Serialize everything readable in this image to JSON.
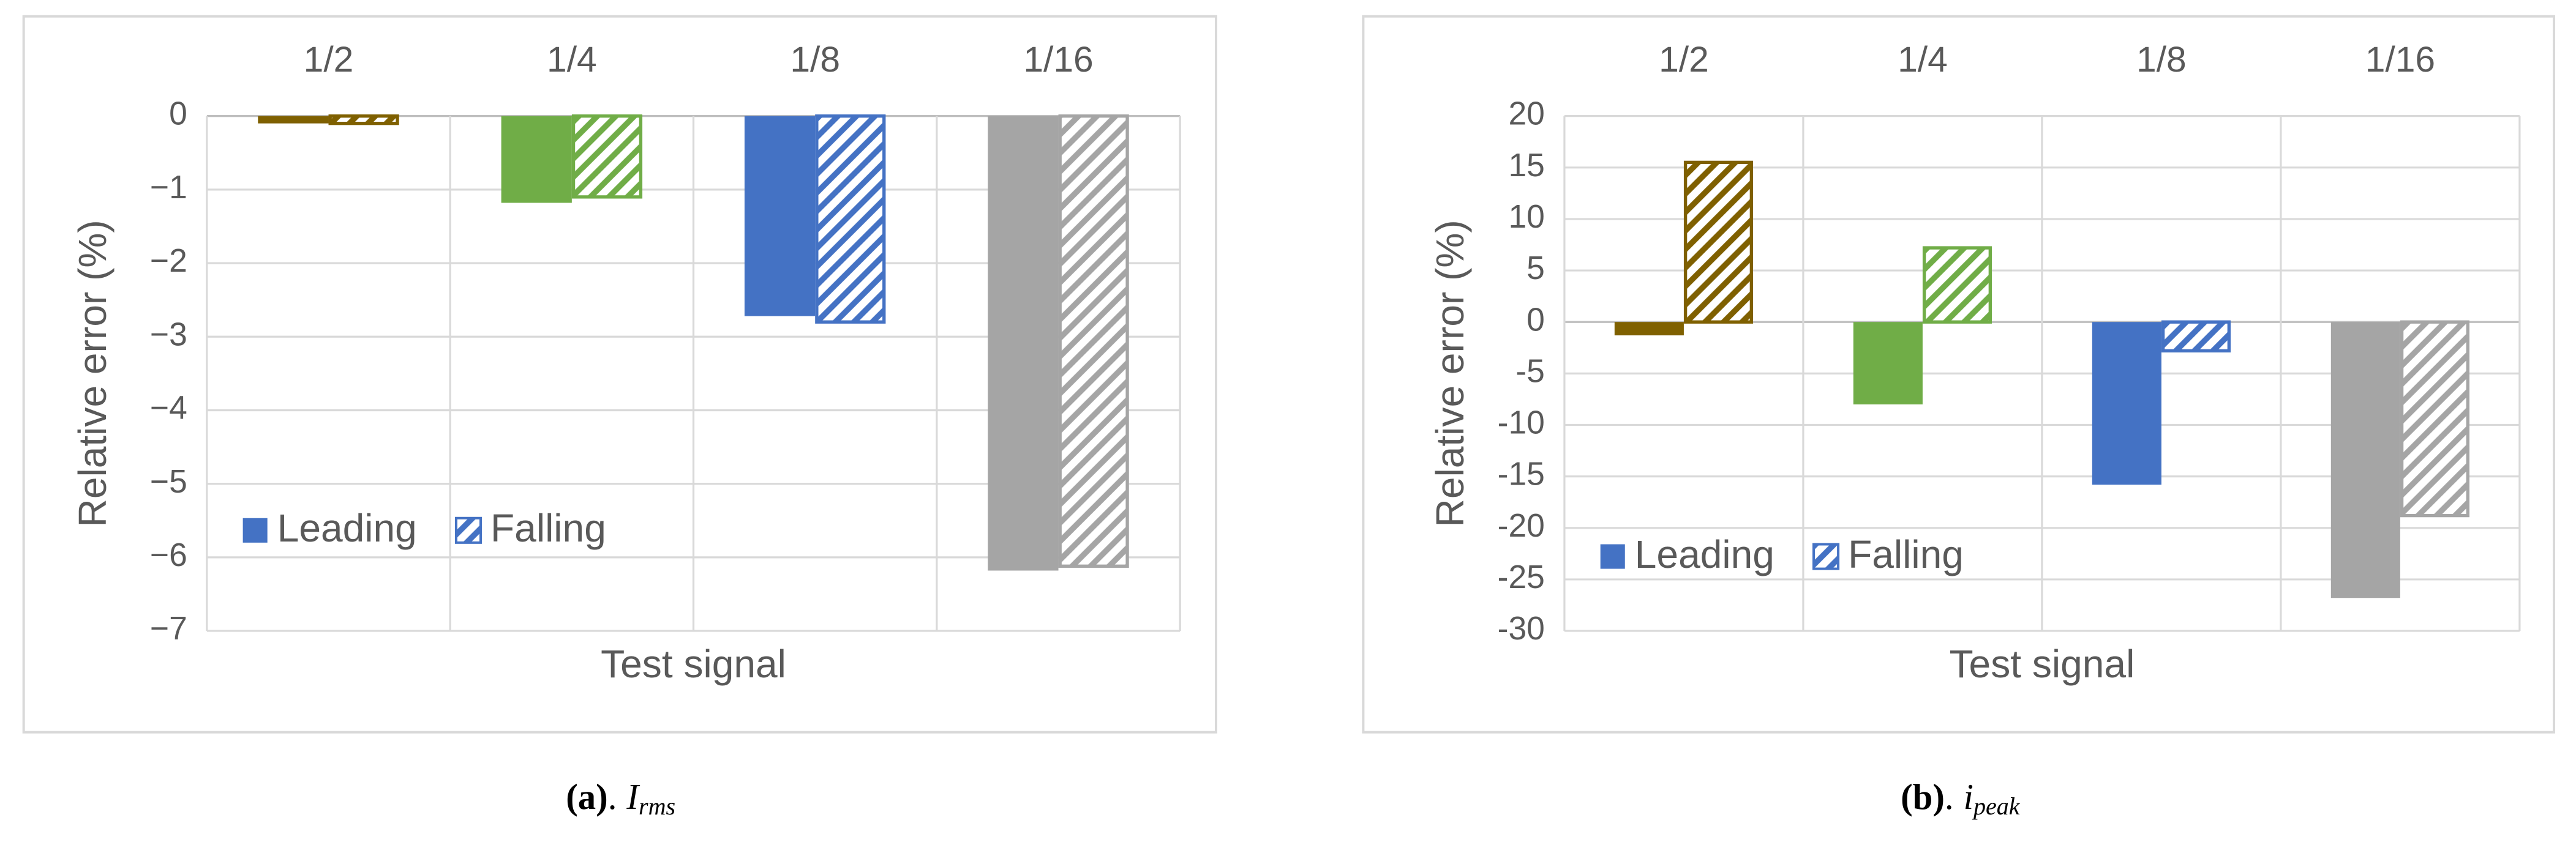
{
  "chart_data": [
    {
      "type": "bar",
      "categories": [
        "1/2",
        "1/4",
        "1/8",
        "1/16"
      ],
      "category_colors": [
        "#7f6000",
        "#70ad47",
        "#4472c4",
        "#a5a5a5"
      ],
      "x_label": "Test signal",
      "y_label": "Relative error (%)",
      "series": [
        {
          "name": "Leading",
          "color": "#4472c4",
          "pattern": "solid",
          "values": [
            -0.1,
            -1.18,
            -2.72,
            -6.18
          ]
        },
        {
          "name": "Falling",
          "color": "#4472c4",
          "pattern": "hatch",
          "values": [
            -0.1,
            -1.1,
            -2.8,
            -6.12
          ]
        }
      ],
      "ylim": [
        -7,
        0
      ],
      "yticks": [
        0,
        {
          "value": -1,
          "label": "−1"
        },
        {
          "value": -2,
          "label": "−2"
        },
        {
          "value": -3,
          "label": "−3"
        },
        {
          "value": -4,
          "label": "−4"
        },
        {
          "value": -5,
          "label": "−5"
        },
        {
          "value": -6,
          "label": "−6"
        },
        {
          "value": -7,
          "label": "−7"
        }
      ],
      "grid": true,
      "legend": "lower left",
      "caption": {
        "label": "(a)",
        "separator": ".",
        "symbol": "I",
        "subscript": "rms"
      }
    },
    {
      "type": "bar",
      "categories": [
        "1/2",
        "1/4",
        "1/8",
        "1/16"
      ],
      "category_colors": [
        "#7f6000",
        "#70ad47",
        "#4472c4",
        "#a5a5a5"
      ],
      "x_label": "Test signal",
      "y_label": "Relative error (%)",
      "series": [
        {
          "name": "Leading",
          "color": "#4472c4",
          "pattern": "solid",
          "values": [
            -1.3,
            -8,
            -15.8,
            -26.8
          ]
        },
        {
          "name": "Falling",
          "color": "#4472c4",
          "pattern": "hatch",
          "values": [
            15.5,
            7.2,
            -2.8,
            -18.8
          ]
        }
      ],
      "ylim": [
        -30,
        20
      ],
      "yticks": [
        20,
        15,
        10,
        5,
        0,
        -5,
        -10,
        -15,
        -20,
        -25,
        -30
      ],
      "grid": true,
      "legend": "lower left",
      "caption": {
        "label": "(b)",
        "separator": ".",
        "symbol": "i",
        "subscript": "peak"
      }
    }
  ]
}
